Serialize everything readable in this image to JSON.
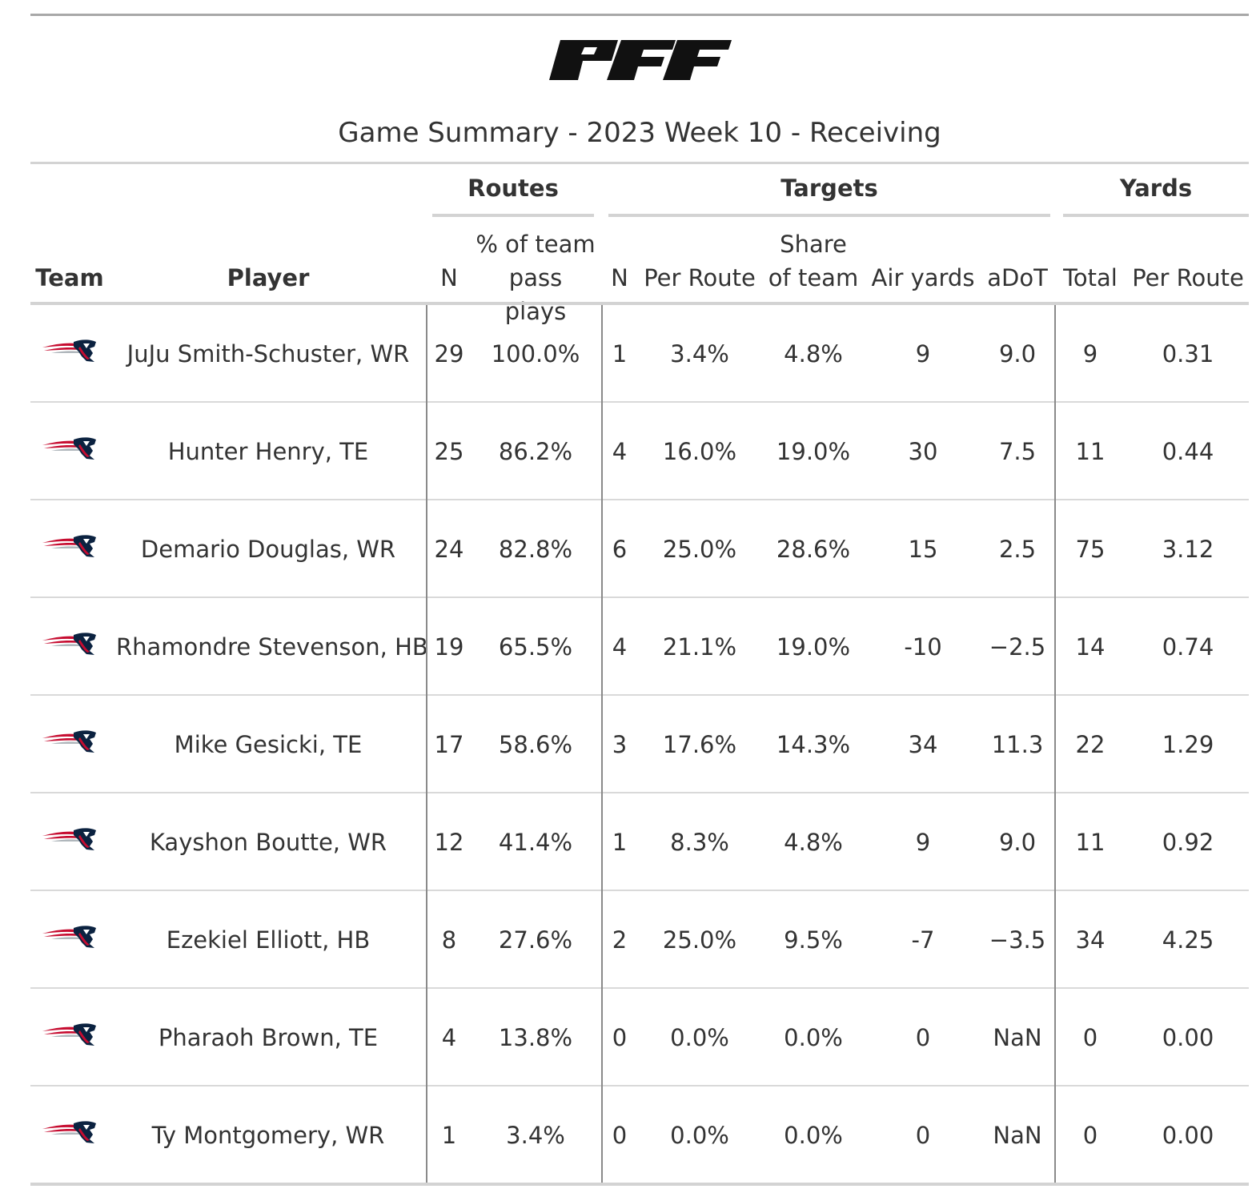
{
  "page": {
    "logo_text": "PFF",
    "subtitle": "Game Summary - 2023 Week 10 - Receiving",
    "team_logo_icon": "patriots-logo-icon",
    "colors": {
      "navy": "#0b2240",
      "red": "#c60c30",
      "silver": "#b0b7bc",
      "logo_black": "#111111"
    }
  },
  "chart_data": {
    "type": "table",
    "title": "Game Summary - 2023 Week 10 - Receiving",
    "spanners": [
      {
        "label": "Routes"
      },
      {
        "label": "Targets"
      },
      {
        "label": "Yards"
      }
    ],
    "columns": [
      {
        "key": "team",
        "line1": "",
        "line2": "Team"
      },
      {
        "key": "player",
        "line1": "",
        "line2": "Player"
      },
      {
        "key": "routes_n",
        "line1": "",
        "line2": "N"
      },
      {
        "key": "routes_pct",
        "line1": "% of team",
        "line2": "pass plays"
      },
      {
        "key": "targets_n",
        "line1": "",
        "line2": "N"
      },
      {
        "key": "targets_per_route",
        "line1": "",
        "line2": "Per Route"
      },
      {
        "key": "targets_share",
        "line1": "Share",
        "line2": "of team"
      },
      {
        "key": "air_yards",
        "line1": "",
        "line2": "Air yards"
      },
      {
        "key": "adot",
        "line1": "",
        "line2": "aDoT"
      },
      {
        "key": "yards_total",
        "line1": "",
        "line2": "Total"
      },
      {
        "key": "yards_per_route",
        "line1": "",
        "line2": "Per Route"
      }
    ],
    "rows": [
      {
        "player": "JuJu Smith-Schuster, WR",
        "routes_n": "29",
        "routes_pct": "100.0%",
        "targets_n": "1",
        "targets_per_route": "3.4%",
        "targets_share": "4.8%",
        "air_yards": "9",
        "adot": "9.0",
        "yards_total": "9",
        "yards_per_route": "0.31"
      },
      {
        "player": "Hunter Henry, TE",
        "routes_n": "25",
        "routes_pct": "86.2%",
        "targets_n": "4",
        "targets_per_route": "16.0%",
        "targets_share": "19.0%",
        "air_yards": "30",
        "adot": "7.5",
        "yards_total": "11",
        "yards_per_route": "0.44"
      },
      {
        "player": "Demario Douglas, WR",
        "routes_n": "24",
        "routes_pct": "82.8%",
        "targets_n": "6",
        "targets_per_route": "25.0%",
        "targets_share": "28.6%",
        "air_yards": "15",
        "adot": "2.5",
        "yards_total": "75",
        "yards_per_route": "3.12"
      },
      {
        "player": "Rhamondre Stevenson, HB",
        "routes_n": "19",
        "routes_pct": "65.5%",
        "targets_n": "4",
        "targets_per_route": "21.1%",
        "targets_share": "19.0%",
        "air_yards": "-10",
        "adot": "−2.5",
        "yards_total": "14",
        "yards_per_route": "0.74"
      },
      {
        "player": "Mike Gesicki, TE",
        "routes_n": "17",
        "routes_pct": "58.6%",
        "targets_n": "3",
        "targets_per_route": "17.6%",
        "targets_share": "14.3%",
        "air_yards": "34",
        "adot": "11.3",
        "yards_total": "22",
        "yards_per_route": "1.29"
      },
      {
        "player": "Kayshon Boutte, WR",
        "routes_n": "12",
        "routes_pct": "41.4%",
        "targets_n": "1",
        "targets_per_route": "8.3%",
        "targets_share": "4.8%",
        "air_yards": "9",
        "adot": "9.0",
        "yards_total": "11",
        "yards_per_route": "0.92"
      },
      {
        "player": "Ezekiel Elliott, HB",
        "routes_n": "8",
        "routes_pct": "27.6%",
        "targets_n": "2",
        "targets_per_route": "25.0%",
        "targets_share": "9.5%",
        "air_yards": "-7",
        "adot": "−3.5",
        "yards_total": "34",
        "yards_per_route": "4.25"
      },
      {
        "player": "Pharaoh Brown, TE",
        "routes_n": "4",
        "routes_pct": "13.8%",
        "targets_n": "0",
        "targets_per_route": "0.0%",
        "targets_share": "0.0%",
        "air_yards": "0",
        "adot": "NaN",
        "yards_total": "0",
        "yards_per_route": "0.00"
      },
      {
        "player": "Ty Montgomery, WR",
        "routes_n": "1",
        "routes_pct": "3.4%",
        "targets_n": "0",
        "targets_per_route": "0.0%",
        "targets_share": "0.0%",
        "air_yards": "0",
        "adot": "NaN",
        "yards_total": "0",
        "yards_per_route": "0.00"
      }
    ]
  }
}
